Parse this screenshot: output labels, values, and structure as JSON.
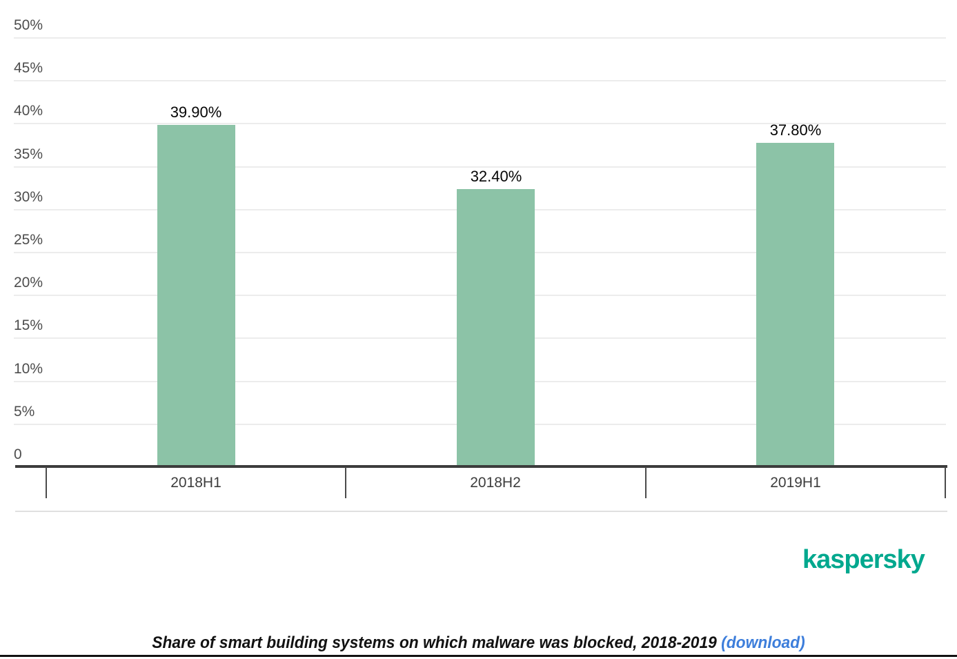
{
  "chart_data": {
    "type": "bar",
    "title": "Share of smart building systems on which malware was blocked, 2018-2019",
    "categories": [
      "2018H1",
      "2018H2",
      "2019H1"
    ],
    "values": [
      39.9,
      32.4,
      37.8
    ],
    "value_labels": [
      "39.90%",
      "32.40%",
      "37.80%"
    ],
    "xlabel": "",
    "ylabel": "",
    "ylim": [
      0,
      50
    ],
    "ytick_step": 5,
    "ytick_labels": [
      "0",
      "5%",
      "10%",
      "15%",
      "20%",
      "25%",
      "30%",
      "35%",
      "40%",
      "45%",
      "50%"
    ],
    "grid": true,
    "legend": false,
    "bar_color": "#8cc3a7"
  },
  "branding": {
    "logo_text": "kaspersky",
    "logo_color": "#00a88e"
  },
  "caption": {
    "text": "Share of smart building systems on which malware was blocked, 2018-2019",
    "link_text": "(download)",
    "link_color": "#3d7edb"
  },
  "colors": {
    "bar": "#8cc3a7",
    "gridline": "#ececec",
    "axis": "#3c3c3c",
    "tick_label": "#4d4d4d",
    "category_label": "#3d3d3d",
    "value_label": "#000000",
    "separator": "#e0e0e0",
    "logo": "#00a88e",
    "download_link": "#3d7edb",
    "bottom_rule": "#121212"
  }
}
